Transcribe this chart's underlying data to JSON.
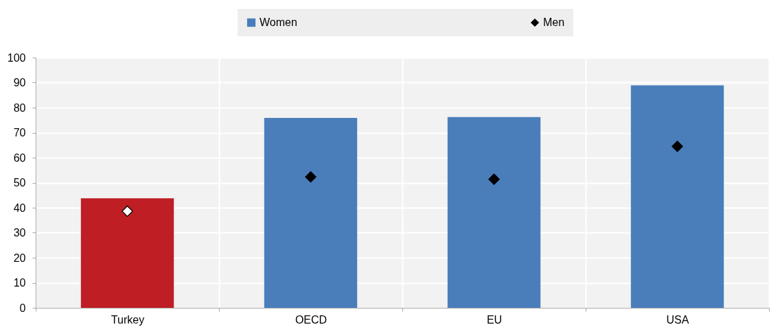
{
  "chart_data": {
    "type": "bar",
    "categories": [
      "Turkey",
      "OECD",
      "EU",
      "USA"
    ],
    "series": [
      {
        "name": "Women",
        "color": "#4a7ebb",
        "colors": [
          "#be1e24",
          "#4a7ebb",
          "#4a7ebb",
          "#4a7ebb"
        ],
        "values": [
          43.8,
          75.9,
          76.2,
          88.9
        ]
      },
      {
        "name": "Men",
        "type": "scatter",
        "marker": "diamond",
        "color": "#000000",
        "colors": [
          "#ffffff",
          "#000000",
          "#000000",
          "#000000"
        ],
        "values": [
          38.6,
          52.3,
          51.4,
          64.5
        ]
      }
    ],
    "ylim": [
      0,
      100
    ],
    "yticks": [
      0,
      10,
      20,
      30,
      40,
      50,
      60,
      70,
      80,
      90,
      100
    ],
    "grid": true,
    "legend": "top"
  }
}
